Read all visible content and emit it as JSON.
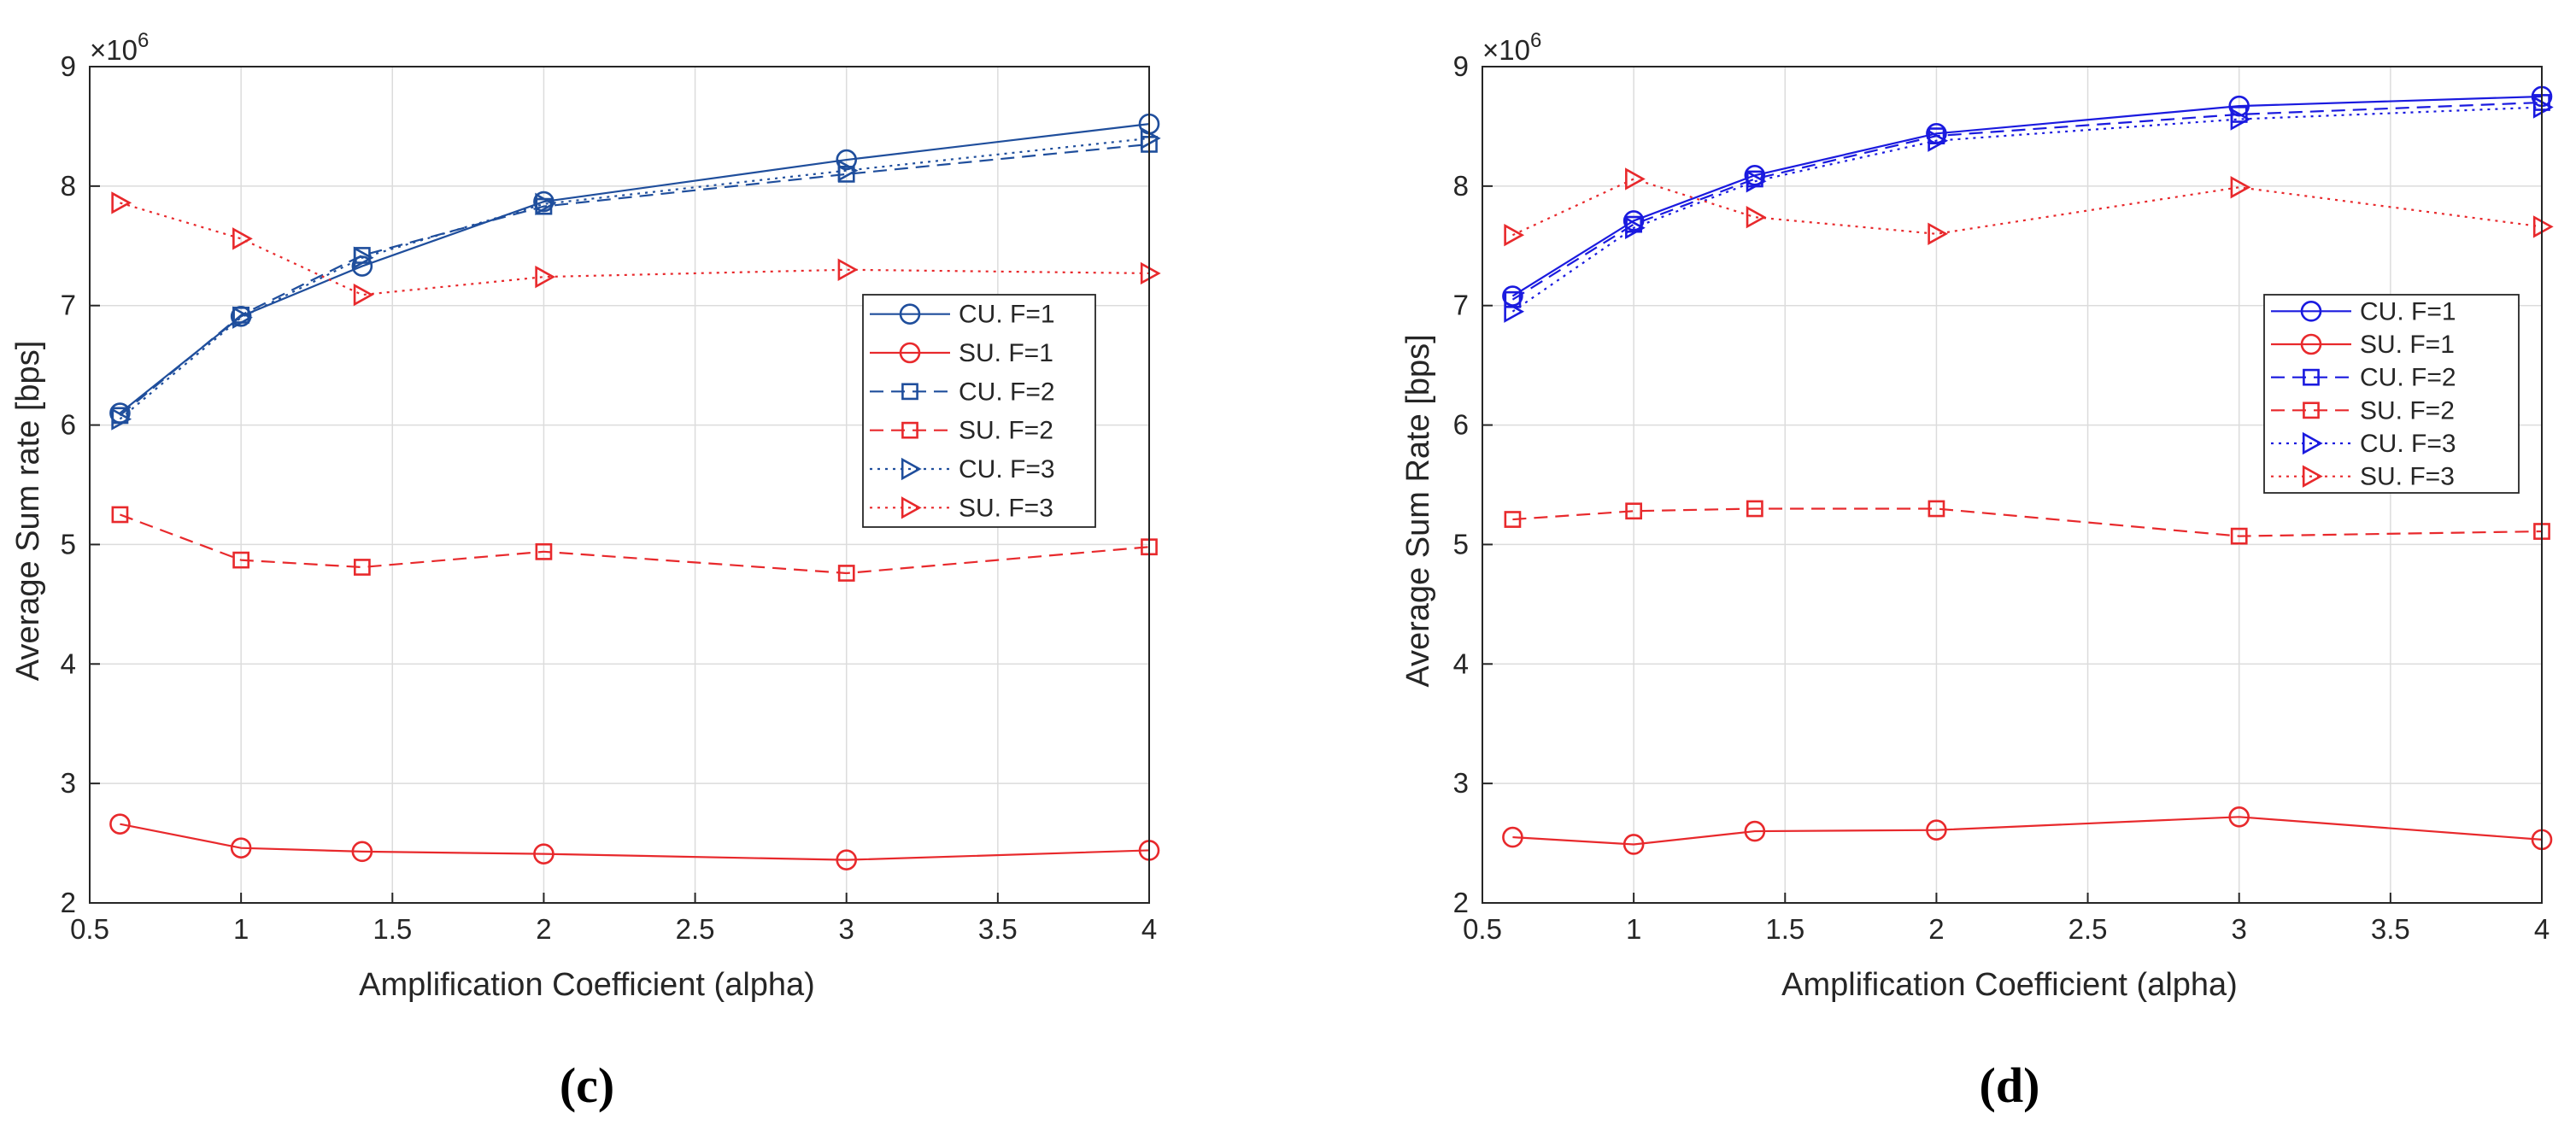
{
  "chart_data": [
    {
      "type": "line",
      "panel_label": "(c)",
      "xlabel": "Amplification Coefficient (alpha)",
      "ylabel": "Average Sum rate [bps]",
      "y_multiplier": "×10",
      "y_exponent": "6",
      "xlim": [
        0.5,
        4
      ],
      "ylim": [
        2,
        9
      ],
      "xticks": [
        "0.5",
        "1",
        "1.5",
        "2",
        "2.5",
        "3",
        "3.5",
        "4"
      ],
      "yticks": [
        "2",
        "3",
        "4",
        "5",
        "6",
        "7",
        "8",
        "9"
      ],
      "grid": true,
      "legend_position": "center-right",
      "x": [
        0.6,
        1,
        1.4,
        2,
        3,
        4
      ],
      "series": [
        {
          "name": "CU. F=1",
          "color": "#1f4e9c",
          "dash": "solid",
          "marker": "circle",
          "values": [
            6.1,
            6.91,
            7.33,
            7.87,
            8.22,
            8.52
          ]
        },
        {
          "name": "SU. F=1",
          "color": "#e8292c",
          "dash": "solid",
          "marker": "circle",
          "values": [
            2.66,
            2.46,
            2.43,
            2.41,
            2.36,
            2.44
          ]
        },
        {
          "name": "CU. F=2",
          "color": "#1f4e9c",
          "dash": "dashed",
          "marker": "square",
          "values": [
            6.08,
            6.92,
            7.42,
            7.83,
            8.1,
            8.35
          ]
        },
        {
          "name": "SU. F=2",
          "color": "#e8292c",
          "dash": "dashed",
          "marker": "square",
          "values": [
            5.25,
            4.87,
            4.81,
            4.94,
            4.76,
            4.98
          ]
        },
        {
          "name": "CU. F=3",
          "color": "#1f4e9c",
          "dash": "dotted",
          "marker": "triangle-right",
          "values": [
            6.05,
            6.9,
            7.4,
            7.85,
            8.13,
            8.4
          ]
        },
        {
          "name": "SU. F=3",
          "color": "#e8292c",
          "dash": "dotted",
          "marker": "triangle-right",
          "values": [
            7.86,
            7.56,
            7.09,
            7.24,
            7.3,
            7.27
          ]
        }
      ]
    },
    {
      "type": "line",
      "panel_label": "(d)",
      "xlabel": "Amplification Coefficient (alpha)",
      "ylabel": "Average Sum Rate [bps]",
      "y_multiplier": "×10",
      "y_exponent": "6",
      "xlim": [
        0.5,
        4
      ],
      "ylim": [
        2,
        9
      ],
      "xticks": [
        "0.5",
        "1",
        "1.5",
        "2",
        "2.5",
        "3",
        "3.5",
        "4"
      ],
      "yticks": [
        "2",
        "3",
        "4",
        "5",
        "6",
        "7",
        "8",
        "9"
      ],
      "grid": true,
      "legend_position": "center-right",
      "x": [
        0.6,
        1,
        1.4,
        2,
        3,
        4
      ],
      "series": [
        {
          "name": "CU. F=1",
          "color": "#1a1adf",
          "dash": "solid",
          "marker": "circle",
          "values": [
            7.08,
            7.71,
            8.09,
            8.44,
            8.67,
            8.75
          ]
        },
        {
          "name": "SU. F=1",
          "color": "#e8292c",
          "dash": "solid",
          "marker": "circle",
          "values": [
            2.55,
            2.49,
            2.6,
            2.61,
            2.72,
            2.53
          ]
        },
        {
          "name": "CU. F=2",
          "color": "#1a1adf",
          "dash": "dashed",
          "marker": "square",
          "values": [
            7.05,
            7.68,
            8.06,
            8.42,
            8.6,
            8.7
          ]
        },
        {
          "name": "SU. F=2",
          "color": "#e8292c",
          "dash": "dashed",
          "marker": "square",
          "values": [
            5.21,
            5.28,
            5.3,
            5.3,
            5.07,
            5.11
          ]
        },
        {
          "name": "CU. F=3",
          "color": "#1a1adf",
          "dash": "dotted",
          "marker": "triangle-right",
          "values": [
            6.95,
            7.65,
            8.04,
            8.38,
            8.56,
            8.66
          ]
        },
        {
          "name": "SU. F=3",
          "color": "#e8292c",
          "dash": "dotted",
          "marker": "triangle-right",
          "values": [
            7.59,
            8.06,
            7.74,
            7.6,
            7.99,
            7.66
          ]
        }
      ]
    }
  ]
}
